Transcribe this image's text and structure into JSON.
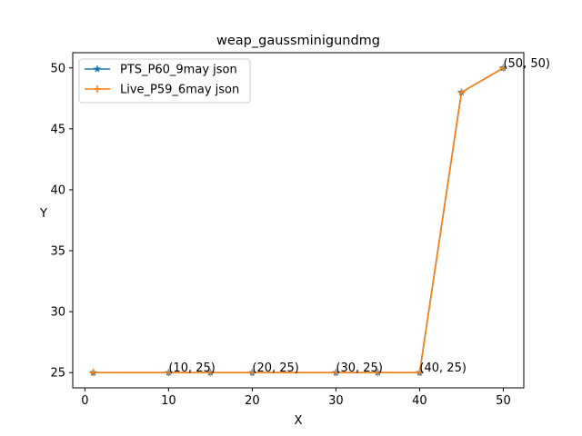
{
  "chart_data": {
    "type": "line",
    "title": "weap_gaussminigundmg",
    "xlabel": "X",
    "ylabel": "Y",
    "xlim": [
      -1.45,
      52.45
    ],
    "ylim": [
      23.75,
      51.25
    ],
    "xticks": [
      0,
      10,
      20,
      30,
      40,
      50
    ],
    "yticks": [
      25,
      30,
      35,
      40,
      45,
      50
    ],
    "grid": false,
    "legend_position": "upper-left",
    "series": [
      {
        "name": "PTS_P60_9may json",
        "color": "#1f77b4",
        "marker": "star",
        "x": [
          1,
          10,
          15,
          20,
          30,
          35,
          40,
          45,
          50
        ],
        "y": [
          25,
          25,
          25,
          25,
          25,
          25,
          25,
          48,
          50
        ]
      },
      {
        "name": "Live_P59_6may json",
        "color": "#ff7f0e",
        "marker": "plus",
        "x": [
          1,
          10,
          15,
          20,
          30,
          35,
          40,
          45,
          50
        ],
        "y": [
          25,
          25,
          25,
          25,
          25,
          25,
          25,
          48,
          50
        ]
      }
    ],
    "annotations": [
      {
        "text": "(10, 25)",
        "x": 10,
        "y": 25
      },
      {
        "text": "(20, 25)",
        "x": 20,
        "y": 25
      },
      {
        "text": "(30, 25)",
        "x": 30,
        "y": 25
      },
      {
        "text": "(40, 25)",
        "x": 40,
        "y": 25
      },
      {
        "text": "(50, 50)",
        "x": 50,
        "y": 50
      }
    ]
  }
}
